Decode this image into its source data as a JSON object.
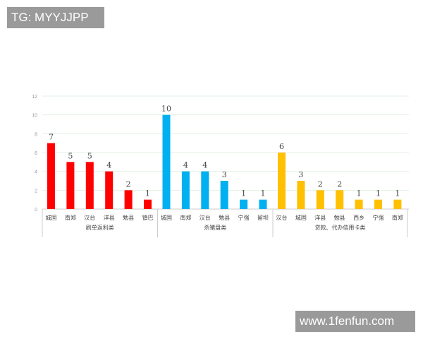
{
  "watermarks": {
    "top_left": "TG: MYYJJPP",
    "bottom_right": "www.1fenfun.com"
  },
  "chart_data": {
    "type": "bar",
    "title": "",
    "xlabel": "",
    "ylabel": "",
    "ylim": [
      0,
      12
    ],
    "yticks": [
      0,
      2,
      4,
      6,
      8,
      10,
      12
    ],
    "grid": true,
    "groups": [
      {
        "name": "刷单返利类",
        "color": "#ff0000",
        "categories": [
          "城固",
          "南郑",
          "汉台",
          "洋县",
          "勉县",
          "镇巴"
        ],
        "values": [
          7,
          5,
          5,
          4,
          2,
          1
        ]
      },
      {
        "name": "杀猪盘类",
        "color": "#00b0f0",
        "categories": [
          "城固",
          "南郑",
          "汉台",
          "勉县",
          "宁强",
          "留坝"
        ],
        "values": [
          10,
          4,
          4,
          3,
          1,
          1
        ]
      },
      {
        "name": "贷款、代办信用卡类",
        "color": "#ffc000",
        "categories": [
          "汉台",
          "城固",
          "洋县",
          "勉县",
          "西乡",
          "宁强",
          "南郑"
        ],
        "values": [
          6,
          3,
          2,
          2,
          1,
          1,
          1
        ]
      }
    ]
  }
}
